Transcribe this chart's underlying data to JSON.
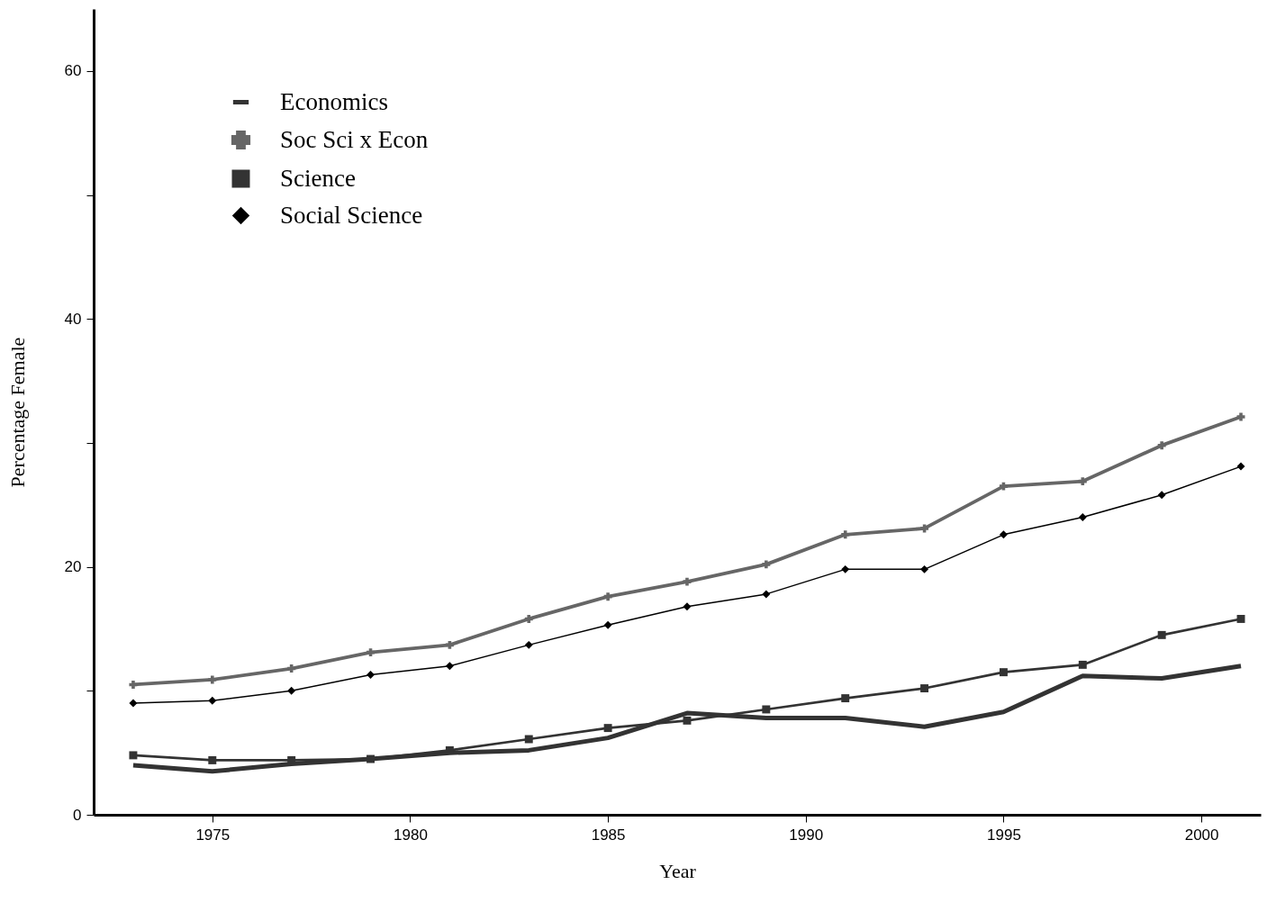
{
  "chart_data": {
    "type": "line",
    "xlabel": "Year",
    "ylabel": "Percentage Female",
    "x": [
      1973,
      1975,
      1977,
      1979,
      1981,
      1983,
      1985,
      1987,
      1989,
      1991,
      1993,
      1995,
      1997,
      1999,
      2001
    ],
    "series": [
      {
        "name": "Economics",
        "color": "#333333",
        "marker": "none",
        "values": [
          4.0,
          3.5,
          4.1,
          4.5,
          5.0,
          5.2,
          6.2,
          8.2,
          7.8,
          7.8,
          7.1,
          8.3,
          11.2,
          11.0,
          12.0
        ]
      },
      {
        "name": "Soc Sci x Econ",
        "color": "#666666",
        "marker": "cross",
        "values": [
          10.5,
          10.9,
          11.8,
          13.1,
          13.7,
          15.8,
          17.6,
          18.8,
          20.2,
          22.6,
          23.1,
          26.5,
          26.9,
          29.8,
          32.1
        ]
      },
      {
        "name": "Science",
        "color": "#333333",
        "marker": "square",
        "values": [
          4.8,
          4.4,
          4.4,
          4.5,
          5.2,
          6.1,
          7.0,
          7.6,
          8.5,
          9.4,
          10.2,
          11.5,
          12.1,
          14.5,
          15.8
        ]
      },
      {
        "name": "Social Science",
        "color": "#000000",
        "marker": "diamond",
        "values": [
          9.0,
          9.2,
          10.0,
          11.3,
          12.0,
          13.7,
          15.3,
          16.8,
          17.8,
          19.8,
          19.8,
          22.6,
          24.0,
          25.8,
          28.1
        ]
      }
    ],
    "xlim": [
      1972,
      2001.5
    ],
    "ylim": [
      0,
      65
    ],
    "xticks": [
      1975,
      1980,
      1985,
      1990,
      1995,
      2000
    ],
    "yticks": [
      0,
      {
        "value": 10,
        "label": null
      },
      20,
      {
        "value": 30,
        "label": null
      },
      40,
      {
        "value": 50,
        "label": null
      },
      60
    ],
    "grid": false,
    "legend": "top left",
    "line_style": "solid"
  }
}
